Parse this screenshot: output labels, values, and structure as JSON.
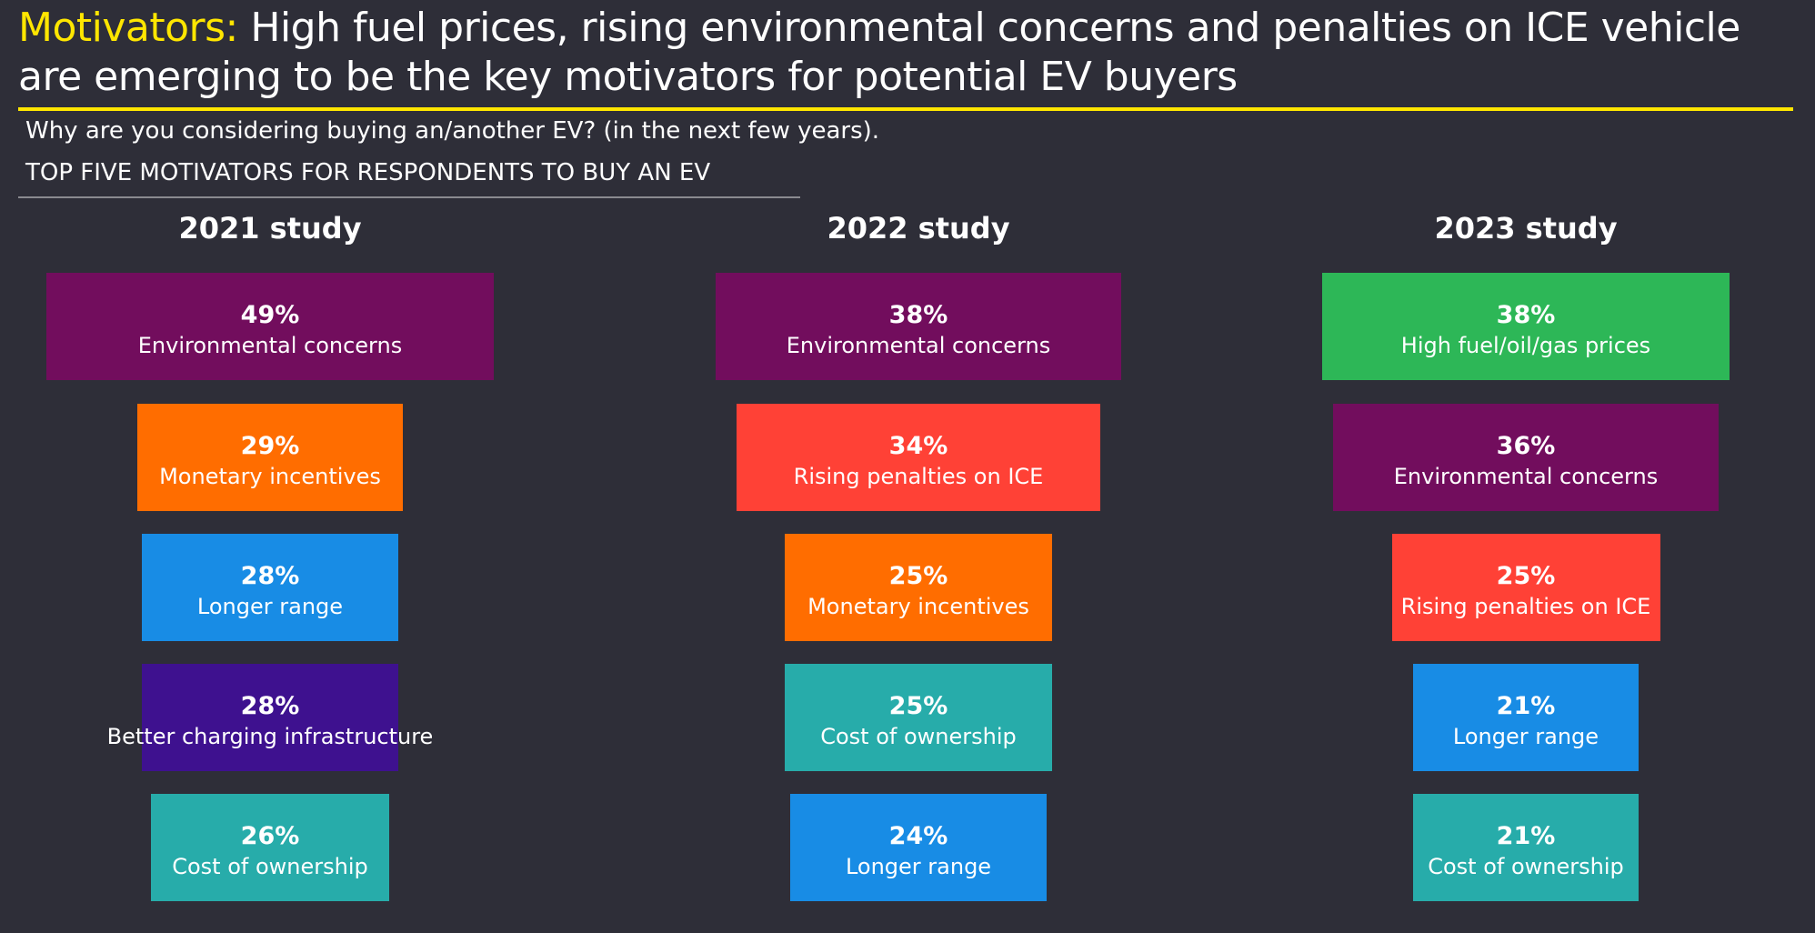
{
  "title": {
    "highlight": "Motivators:",
    "text": " High fuel prices, rising environmental concerns and penalties on ICE vehicle are emerging to be the key motivators for potential EV buyers"
  },
  "subtitle": "Why are you considering buying an/another EV? (in the next few years).",
  "section_heading": "TOP FIVE MOTIVATORS FOR RESPONDENTS TO BUY AN EV",
  "colors": {
    "background": "#2e2e38",
    "accent": "#ffe600",
    "Environmental concerns": "#720d5d",
    "Monetary incentives": "#ff6d00",
    "Longer range": "#188ce5",
    "Better charging infrastructure": "#3e118f",
    "Cost of ownership": "#27acaa",
    "Rising penalties on ICE": "#ff4136",
    "High fuel/oil/gas prices": "#2db757"
  },
  "chart_data": [
    {
      "type": "bar",
      "title": "2021 study",
      "unit": "%",
      "items": [
        {
          "label": "Environmental concerns",
          "value": 49
        },
        {
          "label": "Monetary incentives",
          "value": 29
        },
        {
          "label": "Longer range",
          "value": 28
        },
        {
          "label": "Better charging infrastructure",
          "value": 28
        },
        {
          "label": "Cost of ownership",
          "value": 26
        }
      ]
    },
    {
      "type": "bar",
      "title": "2022 study",
      "unit": "%",
      "items": [
        {
          "label": "Environmental concerns",
          "value": 38
        },
        {
          "label": "Rising penalties on ICE",
          "value": 34
        },
        {
          "label": "Monetary incentives",
          "value": 25
        },
        {
          "label": "Cost of ownership",
          "value": 25
        },
        {
          "label": "Longer range",
          "value": 24
        }
      ]
    },
    {
      "type": "bar",
      "title": "2023 study",
      "unit": "%",
      "items": [
        {
          "label": "High fuel/oil/gas prices",
          "value": 38
        },
        {
          "label": "Environmental concerns",
          "value": 36
        },
        {
          "label": "Rising penalties on ICE",
          "value": 25
        },
        {
          "label": "Longer range",
          "value": 21
        },
        {
          "label": "Cost of ownership",
          "value": 21
        }
      ]
    }
  ]
}
